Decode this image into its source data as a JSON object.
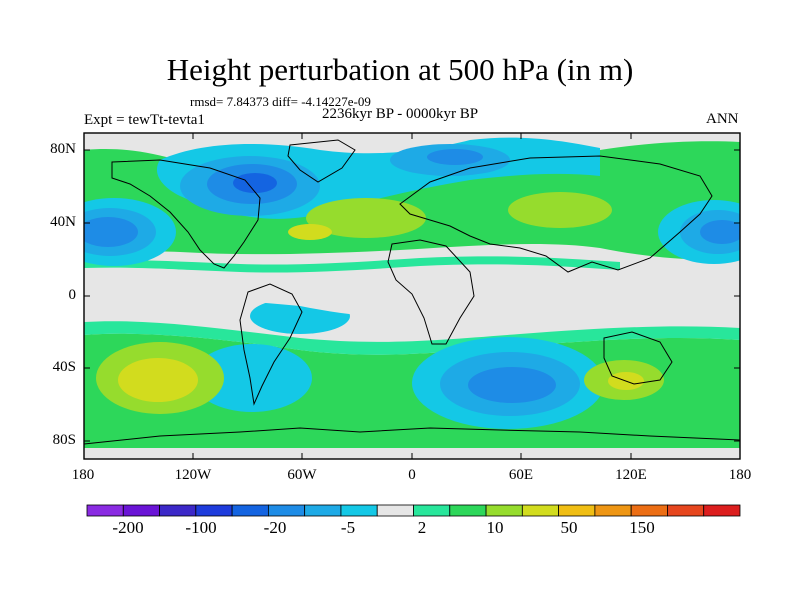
{
  "title": "Height perturbation at 500 hPa (in m)",
  "stats": "rmsd= 7.84373 diff= -4.14227e-09",
  "period": "2236kyr BP - 0000kyr BP",
  "experiment": "Expt = tewTt-tevta1",
  "season": "ANN",
  "lat_labels": [
    "80N",
    "40N",
    "0",
    "40S",
    "80S"
  ],
  "lon_labels": [
    "180",
    "120W",
    "60W",
    "0",
    "60E",
    "120E",
    "180"
  ],
  "colorbar": {
    "colors": [
      "#8a2be2",
      "#6a14d6",
      "#3c28c8",
      "#1e3cdc",
      "#1464e1",
      "#1e8ce6",
      "#1eaae6",
      "#14c8e6",
      "#e6e6e6",
      "#28e69b",
      "#2dd75a",
      "#96dc2d",
      "#d2dc1e",
      "#f0be14",
      "#ee9614",
      "#ec6e14",
      "#e6461e",
      "#dc1e1e"
    ],
    "labels": [
      "-200",
      "-100",
      "-20",
      "-5",
      "2",
      "10",
      "50",
      "150"
    ]
  },
  "map": {
    "projection": "cylindrical equidistant",
    "lon_range": [
      -180,
      180
    ],
    "lat_range": [
      -90,
      90
    ],
    "background_class": "2",
    "regions": [
      {
        "name": "north-pacific-low",
        "cls": "-50",
        "lon": -162,
        "lat": 40
      },
      {
        "name": "north-atlantic-low",
        "cls": "-100",
        "lon": -75,
        "lat": 60
      },
      {
        "name": "siberia-low",
        "cls": "-20",
        "lon": 20,
        "lat": 74
      },
      {
        "name": "east-asia-low",
        "cls": "-50",
        "lon": 165,
        "lat": 40
      },
      {
        "name": "south-indian-low",
        "cls": "-50",
        "lon": 52,
        "lat": -50
      },
      {
        "name": "south-pacific-high",
        "cls": "30",
        "lon": -150,
        "lat": -45
      },
      {
        "name": "mid-atlantic-high",
        "cls": "30",
        "lon": -25,
        "lat": 45
      },
      {
        "name": "australia-high",
        "cls": "30",
        "lon": 127,
        "lat": -45
      }
    ]
  }
}
